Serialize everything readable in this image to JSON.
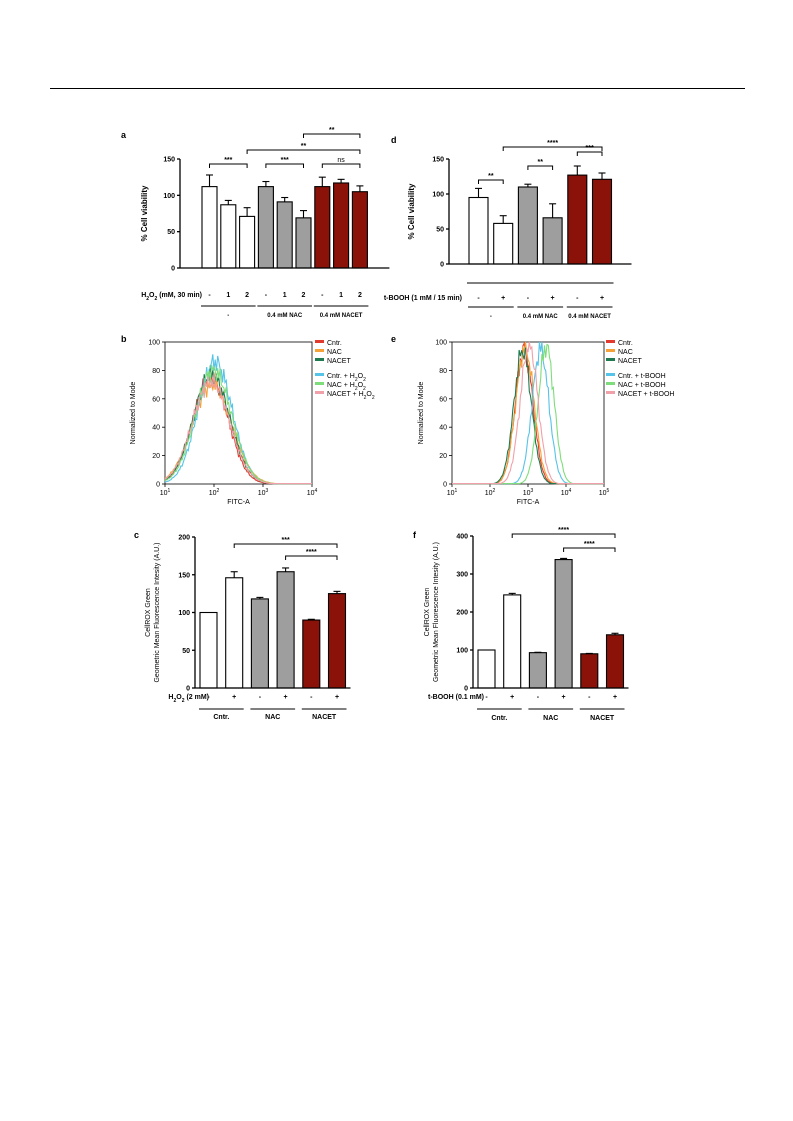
{
  "colors": {
    "white": "#ffffff",
    "grey": "#9e9e9e",
    "darkred": "#8b1209",
    "sigred": "#e8321d",
    "black": "#000000",
    "cntr": "#e23a2e",
    "nac": "#f5a23a",
    "nacet": "#1f7a4f",
    "cntr_t": "#56c3e8",
    "nac_t": "#7edd7a",
    "nacet_t": "#f0a0a8"
  },
  "chart_data": [
    {
      "id": "a",
      "type": "bar",
      "panel_label": "a",
      "ylabel": "% Cell viability",
      "ylim": [
        0,
        150
      ],
      "yticks": [
        "0",
        "50",
        "100",
        "150"
      ],
      "treatment_label": "H2O2 (mM, 30 min)",
      "treatment_main": "H",
      "treatment_sub": "2",
      "treatment_main2": "O",
      "treatment_sub2": "2",
      "treatment_rest": " (mM, 30 min)",
      "conditions": [
        "-",
        "1",
        "2",
        "-",
        "1",
        "2",
        "-",
        "1",
        "2"
      ],
      "groups": [
        "-",
        "0.4 mM NAC",
        "0.4 mM NACET"
      ],
      "values": [
        112,
        87,
        71,
        112,
        91,
        69,
        112,
        117,
        105
      ],
      "errors": [
        16,
        6,
        12,
        7,
        6,
        10,
        13,
        5,
        8
      ],
      "fills": [
        "white",
        "white",
        "white",
        "grey",
        "grey",
        "grey",
        "darkred",
        "darkred",
        "darkred"
      ],
      "annotations": [
        {
          "text": "***",
          "from": 0,
          "to": 2,
          "color": "black"
        },
        {
          "text": "***",
          "from": 3,
          "to": 5,
          "color": "black"
        },
        {
          "text": "ns",
          "from": 6,
          "to": 8,
          "color": "black"
        },
        {
          "text": "**",
          "from": 2,
          "to": 8,
          "color": "black"
        },
        {
          "text": "**",
          "from": 5,
          "to": 8,
          "color": "sigred"
        }
      ]
    },
    {
      "id": "d",
      "type": "bar",
      "panel_label": "d",
      "ylabel": "% Cell viability",
      "ylim": [
        0,
        150
      ],
      "yticks": [
        "0",
        "50",
        "100",
        "150"
      ],
      "treatment_label": "t-BOOH (1 mM / 15 min)",
      "conditions": [
        "-",
        "+",
        "-",
        "+",
        "-",
        "+"
      ],
      "groups": [
        "-",
        "0.4 mM NAC",
        "0.4 mM NACET"
      ],
      "values": [
        95,
        58,
        110,
        66,
        127,
        121
      ],
      "errors": [
        13,
        11,
        4,
        20,
        13,
        9
      ],
      "fills": [
        "white",
        "white",
        "grey",
        "grey",
        "darkred",
        "darkred"
      ],
      "annotations": [
        {
          "text": "**",
          "from": 0,
          "to": 1,
          "color": "black"
        },
        {
          "text": "**",
          "from": 2,
          "to": 3,
          "color": "black"
        },
        {
          "text": "***",
          "from": 4,
          "to": 5,
          "color": "sigred"
        },
        {
          "text": "****",
          "from": 1,
          "to": 5,
          "color": "black"
        }
      ]
    },
    {
      "id": "b",
      "type": "line",
      "panel_label": "b",
      "ylabel": "Normalized to Mode",
      "xlabel": "FITC-A",
      "xscale": "log",
      "xlim": [
        10,
        10000
      ],
      "ylim": [
        0,
        100
      ],
      "yticks": [
        "0",
        "20",
        "40",
        "60",
        "80",
        "100"
      ],
      "xtick_base": "10",
      "xtick_exps": [
        "1",
        "2",
        "3",
        "4"
      ],
      "legend_position": "right",
      "series": [
        {
          "name": "Cntr.",
          "color": "cntr",
          "peak": 75,
          "center": 1.93,
          "width": 0.36
        },
        {
          "name": "NAC",
          "color": "nac",
          "peak": 70,
          "center": 1.96,
          "width": 0.4
        },
        {
          "name": "NACET",
          "color": "nacet",
          "peak": 77,
          "center": 1.95,
          "width": 0.37
        },
        {
          "name": "Cntr. + H2O2",
          "color": "cntr_t",
          "peak": 86,
          "center": 2.02,
          "width": 0.35
        },
        {
          "name": "NAC + H2O2",
          "color": "nac_t",
          "peak": 80,
          "center": 1.99,
          "width": 0.37
        },
        {
          "name": "NACET + H2O2",
          "color": "nacet_t",
          "peak": 72,
          "center": 1.94,
          "width": 0.38
        }
      ]
    },
    {
      "id": "e",
      "type": "line",
      "panel_label": "e",
      "ylabel": "Normalized to Mode",
      "xlabel": "FITC-A",
      "xscale": "log",
      "xlim": [
        10,
        100000
      ],
      "ylim": [
        0,
        100
      ],
      "yticks": [
        "0",
        "20",
        "40",
        "60",
        "80",
        "100"
      ],
      "xtick_base": "10",
      "xtick_exps": [
        "1",
        "2",
        "3",
        "4",
        "5"
      ],
      "legend_position": "right",
      "series": [
        {
          "name": "Cntr.",
          "color": "cntr",
          "peak": 95,
          "center": 2.9,
          "width": 0.23
        },
        {
          "name": "NAC",
          "color": "nac",
          "peak": 96,
          "center": 2.92,
          "width": 0.24
        },
        {
          "name": "NACET",
          "color": "nacet",
          "peak": 94,
          "center": 2.86,
          "width": 0.23
        },
        {
          "name": "Cntr. + t-BOOH",
          "color": "cntr_t",
          "peak": 95,
          "center": 3.33,
          "width": 0.22
        },
        {
          "name": "NAC + t-BOOH",
          "color": "nac_t",
          "peak": 97,
          "center": 3.48,
          "width": 0.21
        },
        {
          "name": "NACET + t-BOOH",
          "color": "nacet_t",
          "peak": 99,
          "center": 3.03,
          "width": 0.23
        }
      ]
    },
    {
      "id": "c",
      "type": "bar",
      "panel_label": "c",
      "ylabel": "CellROX Green",
      "ylabel2": "Geometric Mean Fluorescence Intesity (A.U.)",
      "ylim": [
        0,
        200
      ],
      "yticks": [
        "0",
        "50",
        "100",
        "150",
        "200"
      ],
      "treatment_label": "H2O2 (2 mM)",
      "treatment_main": "H",
      "treatment_sub": "2",
      "treatment_main2": "O",
      "treatment_sub2": "2",
      "treatment_rest": " (2 mM)",
      "conditions": [
        "-",
        "+",
        "-",
        "+",
        "-",
        "+"
      ],
      "groups": [
        "Cntr.",
        "NAC",
        "NACET"
      ],
      "values": [
        100,
        146,
        118,
        154,
        90,
        125
      ],
      "errors": [
        0,
        8,
        2,
        5,
        1,
        3
      ],
      "fills": [
        "white",
        "white",
        "grey",
        "grey",
        "darkred",
        "darkred"
      ],
      "annotations": [
        {
          "text": "***",
          "from": 1,
          "to": 5,
          "color": "black"
        },
        {
          "text": "****",
          "from": 3,
          "to": 5,
          "color": "sigred"
        }
      ]
    },
    {
      "id": "f",
      "type": "bar",
      "panel_label": "f",
      "ylabel": "CellROX Green",
      "ylabel2": "Geometric Mean Fluorescence Intesity (A.U.)",
      "ylim": [
        0,
        400
      ],
      "yticks": [
        "0",
        "100",
        "200",
        "300",
        "400"
      ],
      "treatment_label": "t-BOOH (0.1 mM)",
      "conditions": [
        "-",
        "+",
        "-",
        "+",
        "-",
        "+"
      ],
      "groups": [
        "Cntr.",
        "NAC",
        "NACET"
      ],
      "values": [
        100,
        245,
        93,
        338,
        90,
        140
      ],
      "errors": [
        0,
        4,
        1,
        3,
        1,
        4
      ],
      "fills": [
        "white",
        "white",
        "grey",
        "grey",
        "darkred",
        "darkred"
      ],
      "annotations": [
        {
          "text": "****",
          "from": 1,
          "to": 5,
          "color": "black"
        },
        {
          "text": "****",
          "from": 3,
          "to": 5,
          "color": "sigred"
        }
      ]
    }
  ]
}
